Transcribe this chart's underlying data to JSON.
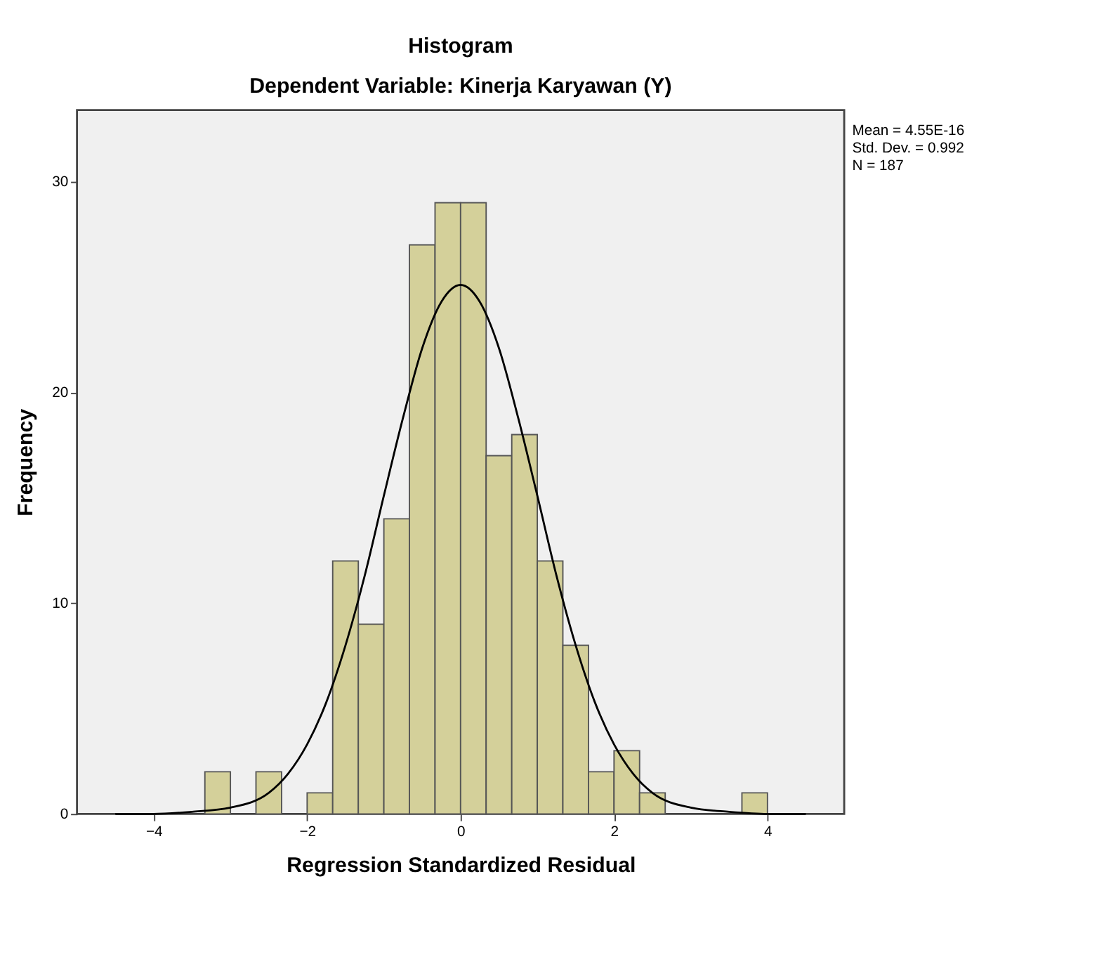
{
  "chart_data": {
    "type": "histogram",
    "title": "Histogram",
    "subtitle": "Dependent Variable: Kinerja Karyawan (Y)",
    "xlabel": "Regression Standardized Residual",
    "ylabel": "Frequency",
    "bins": [
      -3.333,
      -3.0,
      -2.667,
      -2.333,
      -2.0,
      -1.667,
      -1.333,
      -1.0,
      -0.667,
      -0.333,
      0.0,
      0.333,
      0.667,
      1.0,
      1.333,
      1.667,
      2.0,
      2.333,
      2.667,
      3.0,
      3.333,
      3.667,
      4.0
    ],
    "values": [
      2,
      0,
      2,
      0,
      1,
      12,
      9,
      14,
      27,
      29,
      29,
      17,
      18,
      12,
      8,
      2,
      3,
      1,
      0,
      0,
      0,
      1
    ],
    "color": "#d4d09a",
    "series": [
      {
        "type": "line",
        "color": "#000000",
        "x": [
          -4.5,
          -4.0,
          -3.5,
          -3.0,
          -2.5,
          -2.25,
          -2.0,
          -1.75,
          -1.5,
          -1.25,
          -1.0,
          -0.75,
          -0.5,
          -0.25,
          0.0,
          0.25,
          0.5,
          0.75,
          1.0,
          1.25,
          1.5,
          1.75,
          2.0,
          2.25,
          2.5,
          3.0,
          3.5,
          4.0,
          4.5
        ],
        "values": [
          0.0,
          0.0,
          0.1,
          0.3,
          1.0,
          1.9,
          3.3,
          5.3,
          8.0,
          11.3,
          15.1,
          18.8,
          22.1,
          24.3,
          25.1,
          24.3,
          22.1,
          18.8,
          15.1,
          11.3,
          8.0,
          5.3,
          3.3,
          1.9,
          1.0,
          0.3,
          0.1,
          0.0,
          0.0
        ]
      }
    ],
    "xlim": [
      -5,
      5
    ],
    "ylim": [
      0,
      33.4
    ],
    "xticks": [
      -4,
      -2,
      0,
      2,
      4
    ],
    "yticks": [
      0,
      10,
      20,
      30
    ],
    "grid": false,
    "marker": "none",
    "line_style": "solid",
    "annotations": [
      "Mean = 4.55E-16",
      "Std. Dev. = 0.992",
      "N = 187"
    ]
  }
}
